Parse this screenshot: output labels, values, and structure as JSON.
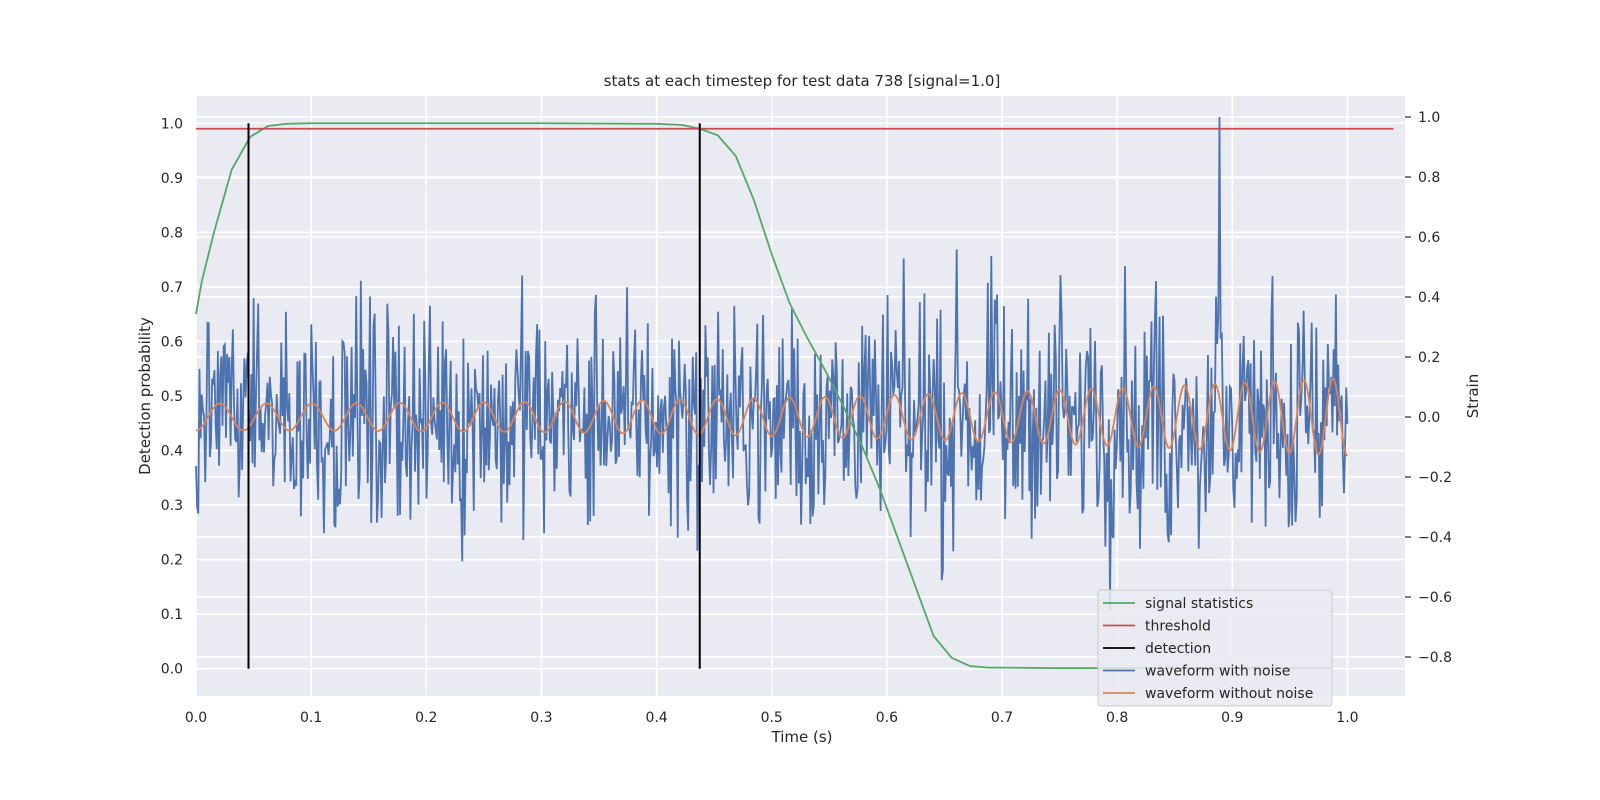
{
  "chart_data": {
    "type": "line",
    "title": "stats at each timestep for test data 738 [signal=1.0]",
    "xlabel": "Time (s)",
    "ylabel_left": "Detection probability",
    "ylabel_right": "Strain",
    "xlim": [
      0.0,
      1.05
    ],
    "ylim_left": [
      -0.05,
      1.05
    ],
    "ylim_right": [
      -0.93,
      1.07
    ],
    "xticks": [
      "0.0",
      "0.1",
      "0.2",
      "0.3",
      "0.4",
      "0.5",
      "0.6",
      "0.7",
      "0.8",
      "0.9",
      "1.0"
    ],
    "yticks_left": [
      "0.0",
      "0.1",
      "0.2",
      "0.3",
      "0.4",
      "0.5",
      "0.6",
      "0.7",
      "0.8",
      "0.9",
      "1.0"
    ],
    "yticks_right": [
      "−0.8",
      "−0.6",
      "−0.4",
      "−0.2",
      "0.0",
      "0.2",
      "0.4",
      "0.6",
      "0.8",
      "1.0"
    ],
    "grid": true,
    "legend_position": "lower right",
    "series": [
      {
        "name": "signal statistics",
        "color": "#55a868",
        "axis": "left",
        "x": [
          0.0,
          0.005,
          0.0156,
          0.031,
          0.047,
          0.0625,
          0.078,
          0.1,
          0.2,
          0.3,
          0.4,
          0.4219,
          0.4375,
          0.4531,
          0.4688,
          0.4844,
          0.5,
          0.5156,
          0.5313,
          0.5469,
          0.5625,
          0.5781,
          0.5938,
          0.6094,
          0.625,
          0.6406,
          0.6563,
          0.6719,
          0.6875,
          0.7,
          0.75,
          0.8,
          0.9,
          0.985
        ],
        "y": [
          0.65,
          0.71,
          0.8,
          0.915,
          0.975,
          0.995,
          0.999,
          1.0,
          1.0,
          1.0,
          0.999,
          0.997,
          0.99,
          0.978,
          0.94,
          0.86,
          0.76,
          0.67,
          0.605,
          0.545,
          0.48,
          0.41,
          0.33,
          0.24,
          0.15,
          0.06,
          0.02,
          0.005,
          0.002,
          0.002,
          0.001,
          0.001,
          0.001,
          0.001
        ]
      },
      {
        "name": "threshold",
        "color": "#c44e52",
        "axis": "left",
        "x": [
          0.0,
          1.04
        ],
        "y": [
          0.99,
          0.99
        ]
      },
      {
        "name": "detection",
        "color": "#000000",
        "axis": "left",
        "x_values": [
          0.0456,
          0.4375
        ],
        "y_range": [
          0.0,
          1.0
        ]
      },
      {
        "name": "waveform with noise",
        "color": "#4c72b0",
        "axis": "right",
        "n_points": 1000,
        "x_range": [
          0.0,
          1.0
        ],
        "amplitude_range": [
          -0.8,
          1.0
        ],
        "peak": {
          "x": 0.889,
          "y": 1.0
        }
      },
      {
        "name": "waveform without noise",
        "color": "#dd8452",
        "axis": "right",
        "x_range": [
          0.0,
          1.0
        ],
        "amplitude_start": 0.045,
        "amplitude_end": 0.13,
        "frequency_start": 24,
        "frequency_end": 40
      }
    ]
  }
}
